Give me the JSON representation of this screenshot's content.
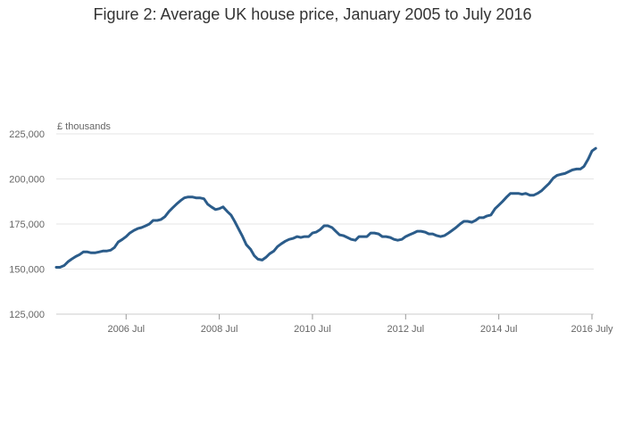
{
  "chart_data": {
    "type": "line",
    "title": "Figure 2: Average UK house price, January 2005 to July 2016",
    "ylabel": "£ thousands",
    "xlabel": "",
    "ylim": [
      125000,
      225000
    ],
    "yticks": [
      {
        "value": 125000,
        "label": "125,000"
      },
      {
        "value": 150000,
        "label": "150,000"
      },
      {
        "value": 175000,
        "label": "175,000"
      },
      {
        "value": 200000,
        "label": "200,000"
      },
      {
        "value": 225000,
        "label": "225,000"
      }
    ],
    "xrange": [
      2005.0,
      2016.5
    ],
    "xticks": [
      {
        "value": 2006.5,
        "label": "2006 Jul"
      },
      {
        "value": 2008.5,
        "label": "2008 Jul"
      },
      {
        "value": 2010.5,
        "label": "2010 Jul"
      },
      {
        "value": 2012.5,
        "label": "2012 Jul"
      },
      {
        "value": 2014.5,
        "label": "2014 Jul"
      },
      {
        "value": 2016.5,
        "label": "2016 July"
      }
    ],
    "grid": true,
    "legend": "none",
    "series": [
      {
        "name": "Average UK house price",
        "color": "#2b5c8a",
        "points": [
          [
            2005.0,
            151000
          ],
          [
            2005.08,
            151000
          ],
          [
            2005.17,
            152000
          ],
          [
            2005.25,
            154000
          ],
          [
            2005.33,
            155500
          ],
          [
            2005.42,
            157000
          ],
          [
            2005.5,
            158000
          ],
          [
            2005.58,
            159500
          ],
          [
            2005.67,
            159500
          ],
          [
            2005.75,
            159000
          ],
          [
            2005.83,
            159000
          ],
          [
            2005.92,
            159500
          ],
          [
            2006.0,
            160000
          ],
          [
            2006.08,
            160000
          ],
          [
            2006.17,
            160500
          ],
          [
            2006.25,
            162000
          ],
          [
            2006.33,
            165000
          ],
          [
            2006.42,
            166500
          ],
          [
            2006.5,
            168000
          ],
          [
            2006.58,
            170000
          ],
          [
            2006.67,
            171500
          ],
          [
            2006.75,
            172500
          ],
          [
            2006.83,
            173000
          ],
          [
            2006.92,
            174000
          ],
          [
            2007.0,
            175000
          ],
          [
            2007.08,
            177000
          ],
          [
            2007.17,
            177000
          ],
          [
            2007.25,
            177500
          ],
          [
            2007.33,
            179000
          ],
          [
            2007.42,
            182000
          ],
          [
            2007.5,
            184000
          ],
          [
            2007.58,
            186000
          ],
          [
            2007.67,
            188000
          ],
          [
            2007.75,
            189500
          ],
          [
            2007.83,
            190000
          ],
          [
            2007.92,
            190000
          ],
          [
            2008.0,
            189500
          ],
          [
            2008.08,
            189500
          ],
          [
            2008.17,
            189000
          ],
          [
            2008.25,
            186000
          ],
          [
            2008.33,
            184500
          ],
          [
            2008.42,
            183000
          ],
          [
            2008.5,
            183500
          ],
          [
            2008.58,
            184500
          ],
          [
            2008.67,
            182000
          ],
          [
            2008.75,
            180000
          ],
          [
            2008.83,
            176500
          ],
          [
            2008.92,
            172000
          ],
          [
            2009.0,
            168000
          ],
          [
            2009.08,
            163500
          ],
          [
            2009.17,
            161000
          ],
          [
            2009.25,
            157500
          ],
          [
            2009.33,
            155500
          ],
          [
            2009.42,
            155000
          ],
          [
            2009.5,
            156500
          ],
          [
            2009.58,
            158500
          ],
          [
            2009.67,
            160000
          ],
          [
            2009.75,
            162500
          ],
          [
            2009.83,
            164000
          ],
          [
            2009.92,
            165500
          ],
          [
            2010.0,
            166500
          ],
          [
            2010.08,
            167000
          ],
          [
            2010.17,
            168000
          ],
          [
            2010.25,
            167500
          ],
          [
            2010.33,
            168000
          ],
          [
            2010.42,
            168000
          ],
          [
            2010.5,
            170000
          ],
          [
            2010.58,
            170500
          ],
          [
            2010.67,
            172000
          ],
          [
            2010.75,
            174000
          ],
          [
            2010.83,
            174000
          ],
          [
            2010.92,
            173000
          ],
          [
            2011.0,
            171000
          ],
          [
            2011.08,
            169000
          ],
          [
            2011.17,
            168500
          ],
          [
            2011.25,
            167500
          ],
          [
            2011.33,
            166500
          ],
          [
            2011.42,
            166000
          ],
          [
            2011.5,
            168000
          ],
          [
            2011.58,
            168000
          ],
          [
            2011.67,
            168000
          ],
          [
            2011.75,
            170000
          ],
          [
            2011.83,
            170000
          ],
          [
            2011.92,
            169500
          ],
          [
            2012.0,
            168000
          ],
          [
            2012.08,
            168000
          ],
          [
            2012.17,
            167500
          ],
          [
            2012.25,
            166500
          ],
          [
            2012.33,
            166000
          ],
          [
            2012.42,
            166500
          ],
          [
            2012.5,
            168000
          ],
          [
            2012.58,
            169000
          ],
          [
            2012.67,
            170000
          ],
          [
            2012.75,
            171000
          ],
          [
            2012.83,
            171000
          ],
          [
            2012.92,
            170500
          ],
          [
            2013.0,
            169500
          ],
          [
            2013.08,
            169500
          ],
          [
            2013.17,
            168500
          ],
          [
            2013.25,
            168000
          ],
          [
            2013.33,
            168500
          ],
          [
            2013.42,
            170000
          ],
          [
            2013.5,
            171500
          ],
          [
            2013.58,
            173000
          ],
          [
            2013.67,
            175000
          ],
          [
            2013.75,
            176500
          ],
          [
            2013.83,
            176500
          ],
          [
            2013.92,
            176000
          ],
          [
            2014.0,
            177000
          ],
          [
            2014.08,
            178500
          ],
          [
            2014.17,
            178500
          ],
          [
            2014.25,
            179500
          ],
          [
            2014.33,
            180000
          ],
          [
            2014.42,
            183500
          ],
          [
            2014.5,
            185500
          ],
          [
            2014.58,
            187500
          ],
          [
            2014.67,
            190000
          ],
          [
            2014.75,
            192000
          ],
          [
            2014.83,
            192000
          ],
          [
            2014.92,
            192000
          ],
          [
            2015.0,
            191500
          ],
          [
            2015.08,
            192000
          ],
          [
            2015.17,
            191000
          ],
          [
            2015.25,
            191000
          ],
          [
            2015.33,
            192000
          ],
          [
            2015.42,
            193500
          ],
          [
            2015.5,
            195500
          ],
          [
            2015.58,
            197500
          ],
          [
            2015.67,
            200500
          ],
          [
            2015.75,
            202000
          ],
          [
            2015.83,
            202500
          ],
          [
            2015.92,
            203000
          ],
          [
            2016.0,
            204000
          ],
          [
            2016.08,
            205000
          ],
          [
            2016.17,
            205500
          ],
          [
            2016.25,
            205500
          ],
          [
            2016.33,
            207000
          ],
          [
            2016.42,
            211000
          ],
          [
            2016.5,
            215500
          ],
          [
            2016.58,
            217000
          ]
        ]
      }
    ]
  }
}
